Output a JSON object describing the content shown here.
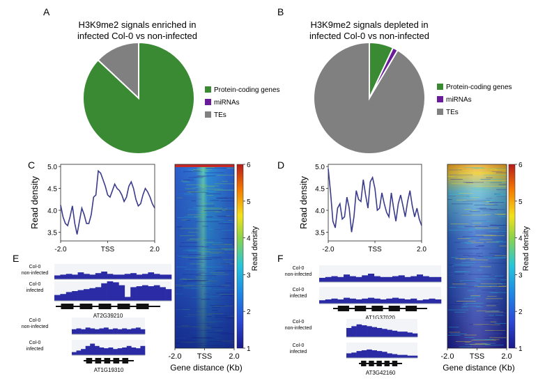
{
  "panel_letters": {
    "a": "A",
    "b": "B",
    "c": "C",
    "d": "D",
    "e": "E",
    "f": "F"
  },
  "pie_legend": [
    "Protein-coding genes",
    "miRNAs",
    "TEs"
  ],
  "colors": {
    "protein": "#3a8a34",
    "mirna": "#6a1b9a",
    "te": "#808080",
    "line": "#3a3a8c",
    "track": "#2b2ba6"
  },
  "profile_axis": {
    "ylabel": "Read density",
    "xticks": [
      "-2.0",
      "TSS",
      "2.0"
    ],
    "yticks": [
      "3.5",
      "4.0",
      "4.5",
      "5.0"
    ]
  },
  "heatmap_axis": {
    "xlabel": "Gene distance (Kb)",
    "xticks": [
      "-2.0",
      "TSS",
      "2.0"
    ],
    "cbar_label": "Read density",
    "cbar_ticks": [
      "1",
      "2",
      "3",
      "4",
      "5",
      "6"
    ]
  },
  "chart_data": [
    {
      "panel": "A",
      "type": "pie",
      "title": "H3K9me2 signals enriched in infected Col-0 vs non-infected",
      "title_lines": [
        "H3K9me2 signals enriched in",
        "infected Col-0 vs non-infected"
      ],
      "categories": [
        "Protein-coding genes",
        "miRNAs",
        "TEs"
      ],
      "values": [
        87,
        0,
        13
      ]
    },
    {
      "panel": "B",
      "type": "pie",
      "title": "H3K9me2 signals depleted in infected Col-0 vs non-infected",
      "title_lines": [
        "H3K9me2 signals depleted in",
        "infected Col-0 vs non-infected"
      ],
      "categories": [
        "Protein-coding genes",
        "miRNAs",
        "TEs"
      ],
      "values": [
        7,
        1.5,
        91.5
      ]
    },
    {
      "panel": "C",
      "type": "line",
      "xlabel": "",
      "ylabel": "Read density",
      "ylim": [
        3.3,
        5.05
      ],
      "x": [
        -2.0,
        -1.9,
        -1.8,
        -1.7,
        -1.6,
        -1.5,
        -1.4,
        -1.3,
        -1.2,
        -1.1,
        -1.0,
        -0.9,
        -0.8,
        -0.7,
        -0.6,
        -0.5,
        -0.4,
        -0.3,
        -0.2,
        -0.1,
        0.0,
        0.1,
        0.2,
        0.3,
        0.4,
        0.5,
        0.6,
        0.7,
        0.8,
        0.9,
        1.0,
        1.1,
        1.2,
        1.3,
        1.4,
        1.5,
        1.6,
        1.7,
        1.8,
        1.9,
        2.0
      ],
      "series": [
        {
          "values": [
            4.12,
            3.85,
            3.7,
            3.65,
            3.85,
            4.1,
            3.7,
            3.45,
            3.75,
            4.05,
            3.9,
            3.7,
            3.7,
            3.9,
            4.3,
            4.35,
            4.9,
            4.85,
            4.7,
            4.55,
            4.35,
            4.3,
            4.45,
            4.6,
            4.5,
            4.45,
            4.35,
            4.2,
            4.3,
            4.55,
            4.65,
            4.5,
            4.25,
            4.1,
            4.15,
            4.35,
            4.5,
            4.42,
            4.3,
            4.15,
            4.05
          ]
        }
      ]
    },
    {
      "panel": "D",
      "type": "line",
      "xlabel": "",
      "ylabel": "Read density",
      "ylim": [
        3.3,
        5.05
      ],
      "x": [
        -2.0,
        -1.9,
        -1.8,
        -1.7,
        -1.6,
        -1.5,
        -1.4,
        -1.3,
        -1.2,
        -1.1,
        -1.0,
        -0.9,
        -0.8,
        -0.7,
        -0.6,
        -0.5,
        -0.4,
        -0.3,
        -0.2,
        -0.1,
        0.0,
        0.1,
        0.2,
        0.3,
        0.4,
        0.5,
        0.6,
        0.7,
        0.8,
        0.9,
        1.0,
        1.1,
        1.2,
        1.3,
        1.4,
        1.5,
        1.6,
        1.7,
        1.8,
        1.9,
        2.0
      ],
      "series": [
        {
          "values": [
            4.95,
            4.4,
            3.75,
            3.6,
            4.05,
            4.15,
            3.8,
            3.85,
            4.3,
            4.05,
            3.5,
            3.85,
            4.45,
            4.25,
            4.2,
            4.7,
            4.35,
            4.05,
            4.65,
            4.75,
            4.5,
            4.0,
            4.05,
            4.4,
            4.15,
            3.95,
            3.85,
            4.4,
            4.05,
            3.75,
            4.15,
            4.35,
            4.1,
            3.85,
            4.2,
            4.45,
            4.1,
            3.85,
            4.05,
            3.8,
            3.65
          ]
        }
      ]
    },
    {
      "panel": "C",
      "type": "heatmap",
      "xlabel": "Gene distance (Kb)",
      "x_ticks": [
        "-2.0",
        "TSS",
        "2.0"
      ],
      "colorbar": {
        "label": "Read density",
        "min": 1,
        "max": 6
      },
      "description_values": {
        "background": 1.8,
        "tss_max": 4.8
      }
    },
    {
      "panel": "D",
      "type": "heatmap",
      "xlabel": "Gene distance (Kb)",
      "x_ticks": [
        "-2.0",
        "TSS",
        "2.0"
      ],
      "colorbar": {
        "label": "Read density",
        "min": 1,
        "max": 6
      },
      "description_values": {
        "background": 1.5,
        "tss_max": 5.5
      }
    }
  ],
  "tracks": {
    "e": [
      {
        "label1": "Col-0",
        "label2": "non-infected",
        "kind": "low"
      },
      {
        "label1": "Col-0",
        "label2": "infected",
        "kind": "high"
      },
      {
        "gene": "AT2G39210"
      },
      {
        "label1": "Col-0",
        "label2": "non-infected",
        "kind": "low2"
      },
      {
        "label1": "Col-0",
        "label2": "infected",
        "kind": "mid2"
      },
      {
        "gene": "AT1G19310"
      }
    ],
    "f": [
      {
        "label1": "Col-0",
        "label2": "non-infected",
        "kind": "low"
      },
      {
        "label1": "Col-0",
        "label2": "infected",
        "kind": "low3"
      },
      {
        "gene": "AT1G37020"
      },
      {
        "label1": "Col-0",
        "label2": "non-infected",
        "kind": "mid3"
      },
      {
        "label1": "Col-0",
        "label2": "infected",
        "kind": "mid4"
      },
      {
        "gene": "AT3G42160"
      }
    ]
  }
}
